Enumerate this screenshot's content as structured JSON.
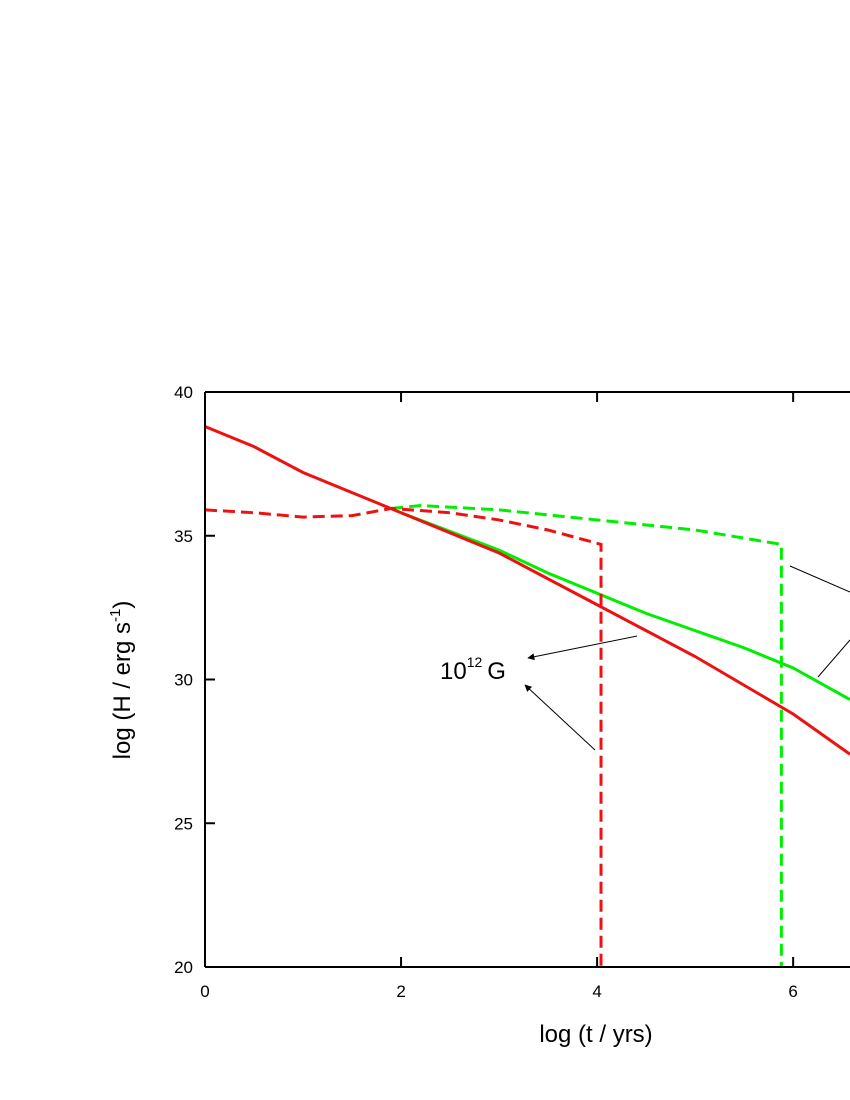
{
  "chart_data": {
    "type": "line",
    "x_label": "log (t / yrs)",
    "y_label": {
      "text": "log (H / erg s",
      "sup": "-1",
      "close": ")"
    },
    "annotation": {
      "base": "10",
      "exp": "12",
      "unit": "G"
    },
    "xlim": [
      0,
      6.58
    ],
    "ylim": [
      20,
      40
    ],
    "xticks": [
      0,
      2,
      4,
      6
    ],
    "yticks": [
      20,
      25,
      30,
      35,
      40
    ],
    "series": [
      {
        "color": "#00ee00",
        "dash": true,
        "x": [
          1.9,
          2.2,
          3,
          4,
          5,
          5.88,
          5.88
        ],
        "values": [
          35.95,
          36.05,
          35.9,
          35.55,
          35.2,
          34.7,
          20
        ]
      },
      {
        "color": "#00ee00",
        "dash": false,
        "x": [
          2,
          2.5,
          3,
          3.5,
          4,
          4.5,
          5,
          5.5,
          6,
          6.58
        ],
        "values": [
          35.8,
          35.15,
          34.5,
          33.7,
          33.0,
          32.3,
          31.7,
          31.1,
          30.4,
          29.3
        ]
      },
      {
        "color": "#ee1111",
        "dash": true,
        "x": [
          0,
          0.5,
          1,
          1.5,
          1.9,
          2.5,
          3,
          3.5,
          4.04,
          4.04
        ],
        "values": [
          35.9,
          35.8,
          35.65,
          35.7,
          35.95,
          35.8,
          35.55,
          35.2,
          34.7,
          20
        ]
      },
      {
        "color": "#ee1111",
        "dash": false,
        "x": [
          0,
          0.5,
          1,
          1.5,
          2,
          2.5,
          3,
          3.5,
          4,
          4.5,
          5,
          5.5,
          6,
          6.58
        ],
        "values": [
          38.8,
          38.1,
          37.2,
          36.5,
          35.8,
          35.1,
          34.4,
          33.5,
          32.6,
          31.7,
          30.8,
          29.8,
          28.8,
          27.4
        ]
      }
    ]
  }
}
